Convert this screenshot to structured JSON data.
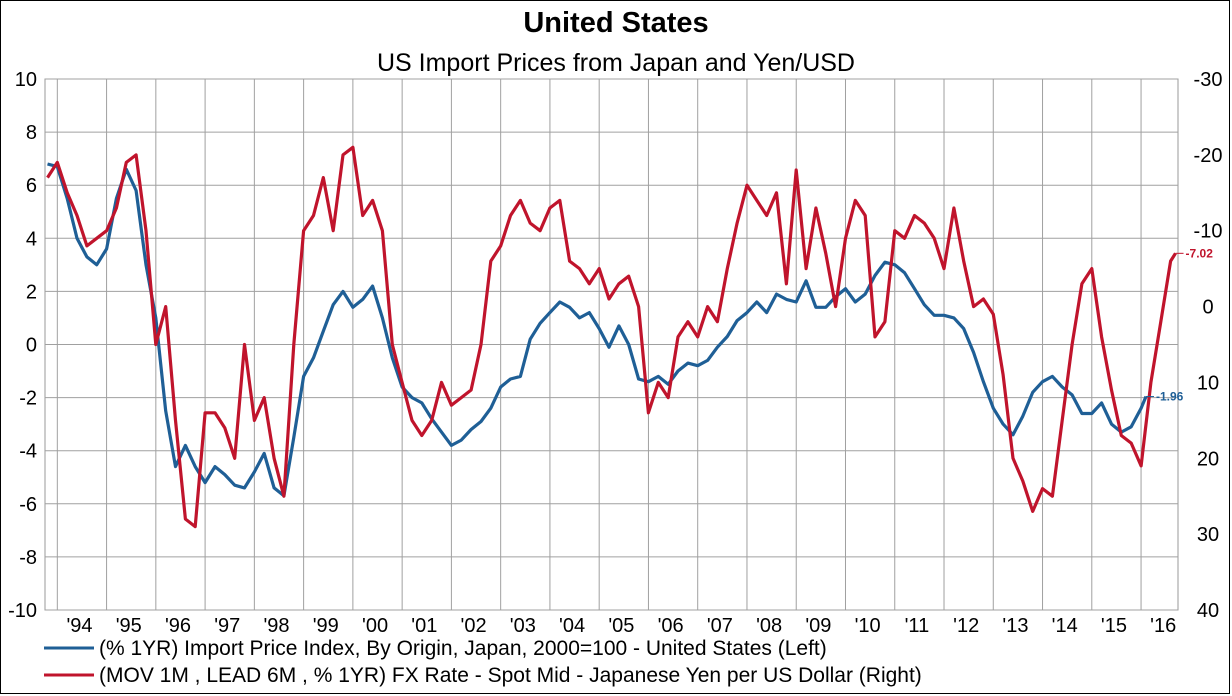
{
  "chart_data": {
    "type": "line",
    "title": "United States",
    "subtitle": "US Import Prices from Japan and Yen/USD",
    "grid": true,
    "left_axis": {
      "ylim": [
        -10,
        10
      ],
      "ticks": [
        "10",
        "8",
        "6",
        "4",
        "2",
        "0",
        "-2",
        "-4",
        "-6",
        "-8",
        "-10"
      ]
    },
    "right_axis": {
      "ylim": [
        40,
        -30
      ],
      "inverted": true,
      "ticks": [
        "-30",
        "-20",
        "-10",
        "0",
        "10",
        "20",
        "30",
        "40"
      ]
    },
    "x_axis": {
      "xlim": [
        1993.75,
        2016.75
      ],
      "tick_labels": [
        "'94",
        "'95",
        "'96",
        "'97",
        "'98",
        "'99",
        "'00",
        "'01",
        "'02",
        "'03",
        "'04",
        "'05",
        "'06",
        "'07",
        "'08",
        "'09",
        "'10",
        "'11",
        "'12",
        "'13",
        "'14",
        "'15",
        "'16"
      ]
    },
    "colors": {
      "blue": "#1f5f96",
      "red": "#c0142c"
    },
    "series": [
      {
        "name": "(% 1YR) Import Price Index, By Origin, Japan, 2000=100 - United States  (Left)",
        "axis": "left",
        "color": "#1f5f96",
        "end_label": "-1.96",
        "x": [
          1993.8,
          1994.0,
          1994.2,
          1994.4,
          1994.6,
          1994.8,
          1995.0,
          1995.2,
          1995.4,
          1995.6,
          1995.8,
          1996.0,
          1996.2,
          1996.4,
          1996.6,
          1996.8,
          1997.0,
          1997.2,
          1997.4,
          1997.6,
          1997.8,
          1998.0,
          1998.2,
          1998.4,
          1998.6,
          1998.8,
          1999.0,
          1999.2,
          1999.4,
          1999.6,
          1999.8,
          2000.0,
          2000.2,
          2000.4,
          2000.6,
          2000.8,
          2001.0,
          2001.2,
          2001.4,
          2001.6,
          2001.8,
          2002.0,
          2002.2,
          2002.4,
          2002.6,
          2002.8,
          2003.0,
          2003.2,
          2003.4,
          2003.6,
          2003.8,
          2004.0,
          2004.2,
          2004.4,
          2004.6,
          2004.8,
          2005.0,
          2005.2,
          2005.4,
          2005.6,
          2005.8,
          2006.0,
          2006.2,
          2006.4,
          2006.6,
          2006.8,
          2007.0,
          2007.2,
          2007.4,
          2007.6,
          2007.8,
          2008.0,
          2008.2,
          2008.4,
          2008.6,
          2008.8,
          2009.0,
          2009.2,
          2009.4,
          2009.6,
          2009.8,
          2010.0,
          2010.2,
          2010.4,
          2010.6,
          2010.8,
          2011.0,
          2011.2,
          2011.4,
          2011.6,
          2011.8,
          2012.0,
          2012.2,
          2012.4,
          2012.6,
          2012.8,
          2013.0,
          2013.2,
          2013.4,
          2013.6,
          2013.8,
          2014.0,
          2014.2,
          2014.4,
          2014.6,
          2014.8,
          2015.0,
          2015.2,
          2015.4,
          2015.6,
          2015.8,
          2016.0,
          2016.1
        ],
        "values": [
          6.8,
          6.7,
          5.5,
          4.0,
          3.3,
          3.0,
          3.6,
          5.5,
          6.6,
          5.8,
          3.0,
          1.0,
          -2.5,
          -4.6,
          -3.8,
          -4.6,
          -5.2,
          -4.6,
          -4.9,
          -5.3,
          -5.4,
          -4.8,
          -4.1,
          -5.4,
          -5.7,
          -3.5,
          -1.2,
          -0.5,
          0.5,
          1.5,
          2.0,
          1.4,
          1.7,
          2.2,
          1.0,
          -0.5,
          -1.6,
          -2.0,
          -2.2,
          -2.8,
          -3.3,
          -3.8,
          -3.6,
          -3.2,
          -2.9,
          -2.4,
          -1.6,
          -1.3,
          -1.2,
          0.2,
          0.8,
          1.2,
          1.6,
          1.4,
          1.0,
          1.2,
          0.6,
          -0.1,
          0.7,
          0.0,
          -1.3,
          -1.4,
          -1.2,
          -1.5,
          -1.0,
          -0.7,
          -0.8,
          -0.6,
          -0.1,
          0.3,
          0.9,
          1.2,
          1.6,
          1.2,
          1.9,
          1.7,
          1.6,
          2.4,
          1.4,
          1.4,
          1.8,
          2.1,
          1.6,
          1.9,
          2.6,
          3.1,
          3.0,
          2.7,
          2.1,
          1.5,
          1.1,
          1.1,
          1.0,
          0.6,
          -0.3,
          -1.4,
          -2.4,
          -3.0,
          -3.4,
          -2.7,
          -1.8,
          -1.4,
          -1.2,
          -1.6,
          -1.9,
          -2.6,
          -2.6,
          -2.2,
          -3.0,
          -3.3,
          -3.1,
          -2.4,
          -1.96
        ]
      },
      {
        "name": "(MOV 1M , LEAD 6M , % 1YR) FX Rate - Spot Mid - Japanese Yen per US Dollar  (Right)",
        "axis": "right",
        "color": "#c0142c",
        "end_label": "-7.02",
        "x": [
          1993.8,
          1994.0,
          1994.2,
          1994.4,
          1994.6,
          1994.8,
          1995.0,
          1995.2,
          1995.4,
          1995.6,
          1995.8,
          1996.0,
          1996.2,
          1996.4,
          1996.6,
          1996.8,
          1997.0,
          1997.2,
          1997.4,
          1997.6,
          1997.8,
          1998.0,
          1998.2,
          1998.4,
          1998.6,
          1998.8,
          1999.0,
          1999.2,
          1999.4,
          1999.6,
          1999.8,
          2000.0,
          2000.2,
          2000.4,
          2000.6,
          2000.8,
          2001.0,
          2001.2,
          2001.4,
          2001.6,
          2001.8,
          2002.0,
          2002.2,
          2002.4,
          2002.6,
          2002.8,
          2003.0,
          2003.2,
          2003.4,
          2003.6,
          2003.8,
          2004.0,
          2004.2,
          2004.4,
          2004.6,
          2004.8,
          2005.0,
          2005.2,
          2005.4,
          2005.6,
          2005.8,
          2006.0,
          2006.2,
          2006.4,
          2006.6,
          2006.8,
          2007.0,
          2007.2,
          2007.4,
          2007.6,
          2007.8,
          2008.0,
          2008.2,
          2008.4,
          2008.6,
          2008.8,
          2009.0,
          2009.2,
          2009.4,
          2009.6,
          2009.8,
          2010.0,
          2010.2,
          2010.4,
          2010.6,
          2010.8,
          2011.0,
          2011.2,
          2011.4,
          2011.6,
          2011.8,
          2012.0,
          2012.2,
          2012.4,
          2012.6,
          2012.8,
          2013.0,
          2013.2,
          2013.4,
          2013.6,
          2013.8,
          2014.0,
          2014.2,
          2014.4,
          2014.6,
          2014.8,
          2015.0,
          2015.2,
          2015.4,
          2015.6,
          2015.8,
          2016.0,
          2016.2,
          2016.4,
          2016.6,
          2016.7
        ],
        "values": [
          -17,
          -19,
          -15,
          -12,
          -8,
          -9,
          -10,
          -13,
          -19,
          -20,
          -10,
          5,
          0,
          15,
          28,
          29,
          14,
          14,
          16,
          20,
          5,
          15,
          12,
          20,
          25,
          5,
          -10,
          -12,
          -17,
          -10,
          -20,
          -21,
          -12,
          -14,
          -10,
          5,
          10,
          15,
          17,
          15,
          10,
          13,
          12,
          11,
          5,
          -6,
          -8,
          -12,
          -14,
          -11,
          -10,
          -13,
          -14,
          -6,
          -5,
          -3,
          -5,
          -1,
          -3,
          -4,
          0,
          14,
          10,
          12,
          4,
          2,
          4,
          0,
          2,
          -5,
          -11,
          -16,
          -14,
          -12,
          -15,
          -3,
          -18,
          -5,
          -13,
          -7,
          0,
          -9,
          -14,
          -12,
          4,
          2,
          -10,
          -9,
          -12,
          -11,
          -9,
          -5,
          -13,
          -6,
          0,
          -1,
          1,
          9,
          20,
          23,
          27,
          24,
          25,
          15,
          5,
          -3,
          -5,
          4,
          11,
          17,
          18,
          21,
          10,
          2,
          -6,
          -7.02
        ]
      }
    ]
  }
}
